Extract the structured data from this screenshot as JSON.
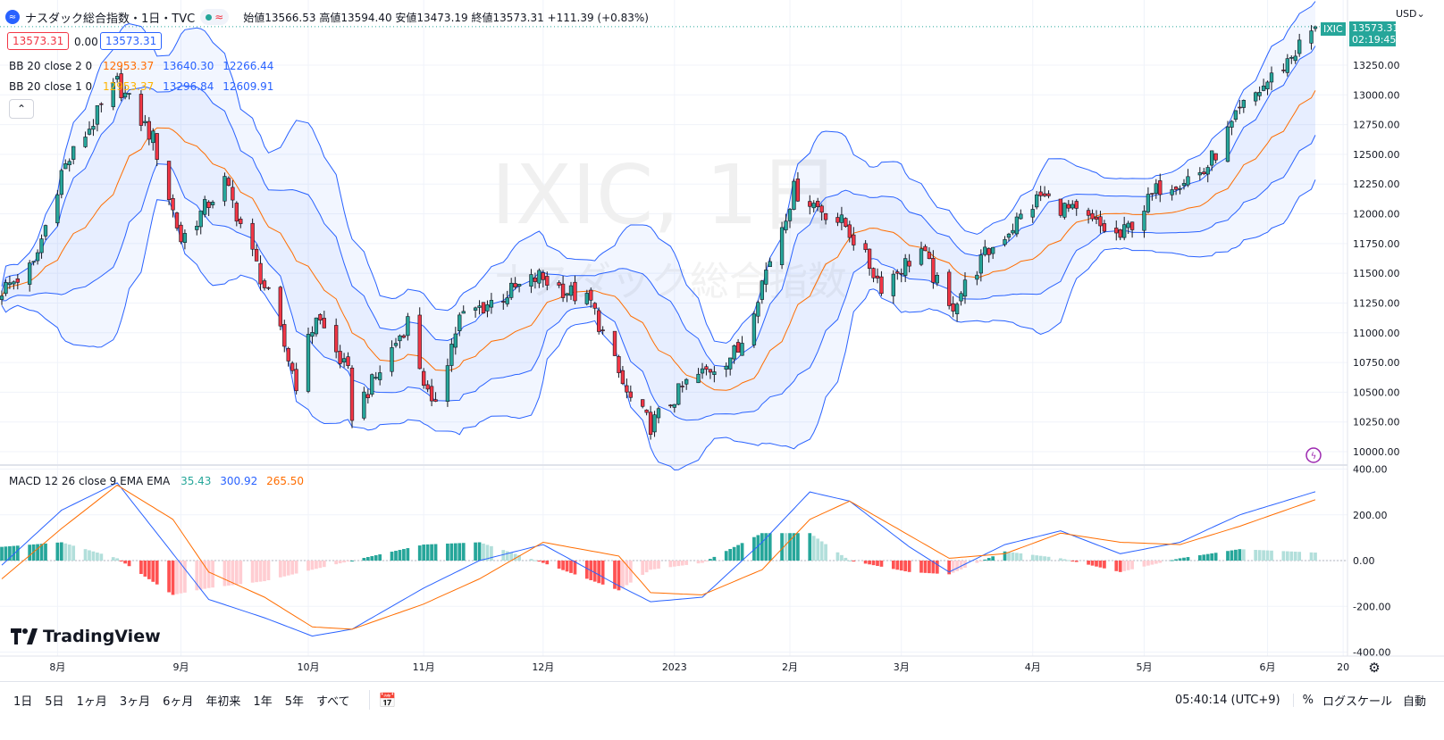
{
  "header": {
    "symbol_title": "ナスダック総合指数・1日・TVC",
    "ohlc": "始値13566.53 高値13594.40 安値13473.19 終値13573.31 +111.39 (+0.83%)",
    "price_left": "13573.31",
    "price_change": "0.00",
    "price_right": "13573.31",
    "currency": "USD"
  },
  "indicators": {
    "bb2": {
      "label": "BB 20 close 2 0",
      "basis": "12953.37",
      "upper": "13640.30",
      "lower": "12266.44"
    },
    "bb1": {
      "label": "BB 20 close 1 0",
      "basis": "12953.37",
      "upper": "13296.84",
      "lower": "12609.91"
    },
    "macd": {
      "label": "MACD 12 26 close 9 EMA EMA",
      "hist": "35.43",
      "macd": "300.92",
      "signal": "265.50"
    }
  },
  "watermark": {
    "line1": "IXIC, 1日",
    "line2": "ナスダック総合指数"
  },
  "price_axis": {
    "ticks": [
      "13250.00",
      "13000.00",
      "12750.00",
      "12500.00",
      "12250.00",
      "12000.00",
      "11750.00",
      "11500.00",
      "11250.00",
      "11000.00",
      "10750.00",
      "10500.00",
      "10250.00",
      "10000.00"
    ],
    "last_price": "13573.31",
    "countdown": "02:19:45",
    "symbol_tag": "IXIC"
  },
  "macd_axis": {
    "ticks": [
      "400.00",
      "200.00",
      "0.00",
      "-200.00",
      "-400.00"
    ]
  },
  "time_axis": [
    "8月",
    "9月",
    "10月",
    "11月",
    "12月",
    "2023",
    "2月",
    "3月",
    "4月",
    "5月",
    "6月",
    "20"
  ],
  "footer": {
    "ranges": [
      "1日",
      "5日",
      "1ヶ月",
      "3ヶ月",
      "6ヶ月",
      "年初来",
      "1年",
      "5年",
      "すべて"
    ],
    "clock": "05:40:14 (UTC+9)",
    "percent": "%",
    "log_scale": "ログスケール",
    "auto": "自動"
  },
  "brand": "TradingView",
  "colors": {
    "up": "#26a69a",
    "down": "#f23645",
    "bb_band": "#2962ff",
    "bb_basis": "#ff6d00",
    "macd_line": "#2962ff",
    "signal_line": "#ff6d00"
  },
  "chart_data": {
    "type": "candlestick",
    "title": "IXIC, 1日",
    "ylim": [
      9900,
      13700
    ],
    "anchors": [
      {
        "date": "2022-07-18",
        "close": 11360
      },
      {
        "date": "2022-07-26",
        "close": 11560
      },
      {
        "date": "2022-08-02",
        "close": 12350
      },
      {
        "date": "2022-08-16",
        "close": 13100
      },
      {
        "date": "2022-08-25",
        "close": 12630
      },
      {
        "date": "2022-09-01",
        "close": 11780
      },
      {
        "date": "2022-09-12",
        "close": 12270
      },
      {
        "date": "2022-09-23",
        "close": 11300
      },
      {
        "date": "2022-09-30",
        "close": 10580
      },
      {
        "date": "2022-10-05",
        "close": 11150
      },
      {
        "date": "2022-10-13",
        "close": 10650
      },
      {
        "date": "2022-10-14",
        "close": 10320
      },
      {
        "date": "2022-10-20",
        "close": 10620
      },
      {
        "date": "2022-10-28",
        "close": 11100
      },
      {
        "date": "2022-11-03",
        "close": 10350
      },
      {
        "date": "2022-11-10",
        "close": 11120
      },
      {
        "date": "2022-11-30",
        "close": 11470
      },
      {
        "date": "2022-12-13",
        "close": 11250
      },
      {
        "date": "2022-12-22",
        "close": 10480
      },
      {
        "date": "2022-12-28",
        "close": 10220
      },
      {
        "date": "2023-01-06",
        "close": 10570
      },
      {
        "date": "2023-01-19",
        "close": 10850
      },
      {
        "date": "2023-02-02",
        "close": 12200
      },
      {
        "date": "2023-02-15",
        "close": 11900
      },
      {
        "date": "2023-02-24",
        "close": 11400
      },
      {
        "date": "2023-03-06",
        "close": 11700
      },
      {
        "date": "2023-03-13",
        "close": 11190
      },
      {
        "date": "2023-03-22",
        "close": 11650
      },
      {
        "date": "2023-04-05",
        "close": 12150
      },
      {
        "date": "2023-04-25",
        "close": 11800
      },
      {
        "date": "2023-05-05",
        "close": 12230
      },
      {
        "date": "2023-05-16",
        "close": 12350
      },
      {
        "date": "2023-05-26",
        "close": 12900
      },
      {
        "date": "2023-06-05",
        "close": 13250
      },
      {
        "date": "2023-06-13",
        "close": 13573
      }
    ],
    "macd_anchors": [
      {
        "date": "2022-07-18",
        "macd": -20,
        "signal": -80
      },
      {
        "date": "2022-08-02",
        "macd": 220,
        "signal": 140
      },
      {
        "date": "2022-08-16",
        "macd": 340,
        "signal": 330
      },
      {
        "date": "2022-08-30",
        "macd": 30,
        "signal": 180
      },
      {
        "date": "2022-09-08",
        "macd": -170,
        "signal": -50
      },
      {
        "date": "2022-09-22",
        "macd": -250,
        "signal": -160
      },
      {
        "date": "2022-10-04",
        "macd": -330,
        "signal": -290
      },
      {
        "date": "2022-10-14",
        "macd": -300,
        "signal": -300
      },
      {
        "date": "2022-11-01",
        "macd": -120,
        "signal": -190
      },
      {
        "date": "2022-11-15",
        "macd": 0,
        "signal": -80
      },
      {
        "date": "2022-12-01",
        "macd": 70,
        "signal": 80
      },
      {
        "date": "2022-12-20",
        "macd": -110,
        "signal": 20
      },
      {
        "date": "2022-12-28",
        "macd": -180,
        "signal": -140
      },
      {
        "date": "2023-01-10",
        "macd": -160,
        "signal": -150
      },
      {
        "date": "2023-01-25",
        "macd": 80,
        "signal": -40
      },
      {
        "date": "2023-02-06",
        "macd": 300,
        "signal": 180
      },
      {
        "date": "2023-02-16",
        "macd": 260,
        "signal": 260
      },
      {
        "date": "2023-03-03",
        "macd": 60,
        "signal": 110
      },
      {
        "date": "2023-03-13",
        "macd": -50,
        "signal": 10
      },
      {
        "date": "2023-03-27",
        "macd": 70,
        "signal": 30
      },
      {
        "date": "2023-04-10",
        "macd": 130,
        "signal": 120
      },
      {
        "date": "2023-04-25",
        "macd": 30,
        "signal": 80
      },
      {
        "date": "2023-05-10",
        "macd": 80,
        "signal": 70
      },
      {
        "date": "2023-05-25",
        "macd": 200,
        "signal": 150
      },
      {
        "date": "2023-06-13",
        "macd": 301,
        "signal": 266
      }
    ]
  }
}
